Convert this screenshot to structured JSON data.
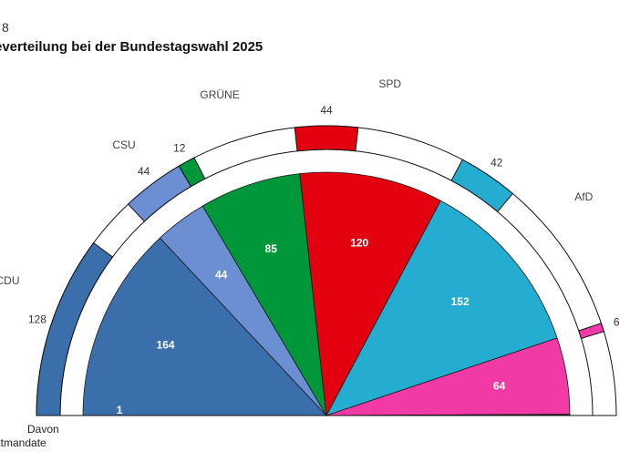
{
  "figure_number": "8",
  "title": "everteilung bei der Bundestagswahl 2025",
  "note": {
    "line1": "Davon",
    "line2": "rektmandate"
  },
  "chart_data": {
    "type": "semicircle-parliament",
    "parties": [
      {
        "name": "CDU",
        "seats": 164,
        "direct_mandates": 128,
        "color": "#3a6fab"
      },
      {
        "name": "CSU",
        "seats": 44,
        "direct_mandates": 44,
        "color": "#6b8fd2"
      },
      {
        "name": "GRÜNE",
        "seats": 85,
        "direct_mandates": 12,
        "color": "#00973a"
      },
      {
        "name": "SPD",
        "seats": 120,
        "direct_mandates": 44,
        "color": "#e3000f"
      },
      {
        "name": "AfD",
        "seats": 152,
        "direct_mandates": 42,
        "color": "#24acd1"
      },
      {
        "name": "",
        "seats": 64,
        "direct_mandates": 6,
        "color": "#f23aa6"
      },
      {
        "name": "",
        "seats": 1,
        "direct_mandates": 0,
        "color": "#1a1a1a"
      }
    ]
  }
}
